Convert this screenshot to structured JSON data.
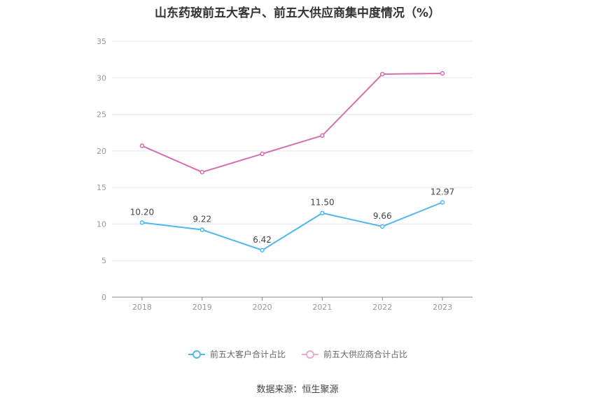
{
  "title": "山东药玻前五大客户、前五大供应商集中度情况（%）",
  "source": "数据来源：恒生聚源",
  "chart_data": {
    "type": "line",
    "categories": [
      "2018",
      "2019",
      "2020",
      "2021",
      "2022",
      "2023"
    ],
    "ylim": [
      0,
      35
    ],
    "yticks": [
      0,
      5,
      10,
      15,
      20,
      25,
      30,
      35
    ],
    "grid": true,
    "legend_position": "bottom",
    "series": [
      {
        "name": "前五大客户合计占比",
        "color": "#4fb8ec",
        "values": [
          10.2,
          9.22,
          6.42,
          11.5,
          9.66,
          12.97
        ],
        "labels": [
          "10.20",
          "9.22",
          "6.42",
          "11.50",
          "9.66",
          "12.97"
        ]
      },
      {
        "name": "前五大供应商合计占比",
        "color": "#d36fb1",
        "values": [
          20.7,
          17.1,
          19.6,
          22.1,
          30.5,
          30.6
        ]
      }
    ]
  }
}
